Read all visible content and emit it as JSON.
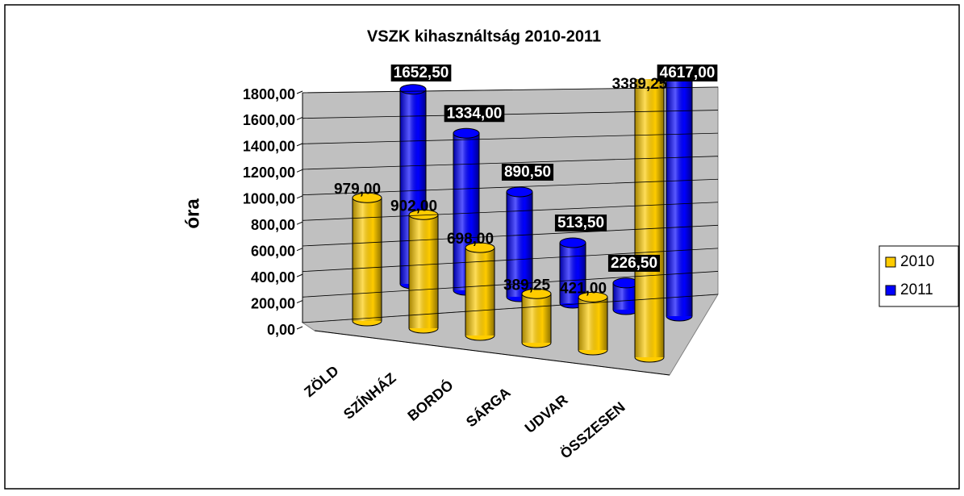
{
  "chart_data": {
    "type": "bar3d",
    "title": "VSZK kihasználtság 2010-2011",
    "y_label": "óra",
    "categories": [
      "ZÖLD",
      "SZÍNHÁZ",
      "BORDÓ",
      "SÁRGA",
      "UDVAR",
      "ÖSSZESEN"
    ],
    "series": [
      {
        "name": "2010",
        "color": "#ffcc00",
        "values": [
          979,
          902,
          698,
          389.25,
          421,
          3389.25
        ],
        "value_labels": [
          "979,00",
          "902,00",
          "698,00",
          "389,25",
          "421,00",
          "3389,25"
        ]
      },
      {
        "name": "2011",
        "color": "#0000ff",
        "values": [
          1652.5,
          1334,
          890.5,
          513.5,
          226.5,
          4617
        ],
        "value_labels": [
          "1652,50",
          "1334,00",
          "890,50",
          "513,50",
          "226,50",
          "4617,00"
        ]
      }
    ],
    "ylim": [
      0,
      1800
    ],
    "yticks": [
      {
        "value": 0,
        "label": "0,00"
      },
      {
        "value": 200,
        "label": "200,00"
      },
      {
        "value": 400,
        "label": "400,00"
      },
      {
        "value": 600,
        "label": "600,00"
      },
      {
        "value": 800,
        "label": "800,00"
      },
      {
        "value": 1000,
        "label": "1000,00"
      },
      {
        "value": 1200,
        "label": "1200,00"
      },
      {
        "value": 1400,
        "label": "1400,00"
      },
      {
        "value": 1600,
        "label": "1600,00"
      },
      {
        "value": 1800,
        "label": "1800,00"
      }
    ],
    "grid": true,
    "legend": "right"
  }
}
